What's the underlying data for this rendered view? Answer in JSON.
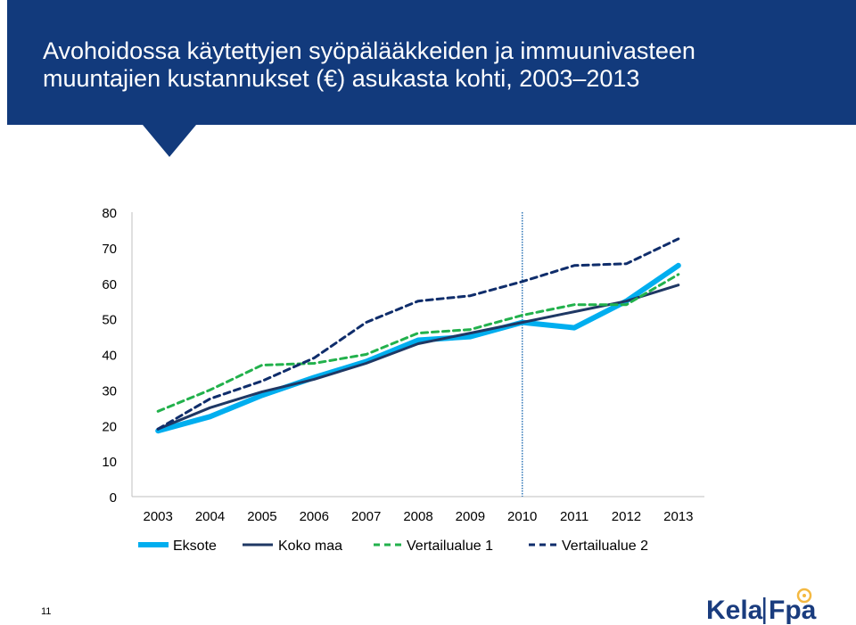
{
  "slide": {
    "title_line1": "Avohoidossa käytettyjen syöpälääkkeiden ja immuunivasteen",
    "title_line2": "muuntajien kustannukset (€) asukasta kohti, 2003–2013",
    "page_number": "11",
    "logo_text": "Kela|Fpa"
  },
  "colors": {
    "banner": "#123a7c",
    "eksote": "#00aeef",
    "koko_maa": "#1f3864",
    "vertailualue1": "#22b14c",
    "vertailualue2": "#0f2d6b",
    "marker_line": "#2e75b6"
  },
  "chart_data": {
    "type": "line",
    "x": [
      "2003",
      "2004",
      "2005",
      "2006",
      "2007",
      "2008",
      "2009",
      "2010",
      "2011",
      "2012",
      "2013"
    ],
    "ylim": [
      0,
      80
    ],
    "yticks": [
      "0",
      "10",
      "20",
      "30",
      "40",
      "50",
      "60",
      "70",
      "80"
    ],
    "grid": false,
    "legend_position": "bottom",
    "vertical_marker_x": "2010",
    "series": [
      {
        "name": "Eksote",
        "style": "solid-thick",
        "color": "#00aeef",
        "values": [
          18.5,
          22.5,
          28.5,
          33.5,
          38,
          44,
          45,
          49,
          47.5,
          55,
          65
        ]
      },
      {
        "name": "Koko maa",
        "style": "solid",
        "color": "#1f3864",
        "values": [
          19,
          25,
          29.5,
          33,
          37.5,
          43,
          46,
          49,
          52,
          55,
          59.5
        ]
      },
      {
        "name": "Vertailualue 1",
        "style": "dashed",
        "color": "#22b14c",
        "values": [
          24,
          30,
          37,
          37.5,
          40,
          46,
          47,
          51,
          54,
          54,
          62.5
        ]
      },
      {
        "name": "Vertailualue 2",
        "style": "dashed",
        "color": "#0f2d6b",
        "values": [
          19,
          27.5,
          32.5,
          39,
          49,
          55,
          56.5,
          60.5,
          65,
          65.5,
          72.5
        ]
      }
    ]
  }
}
